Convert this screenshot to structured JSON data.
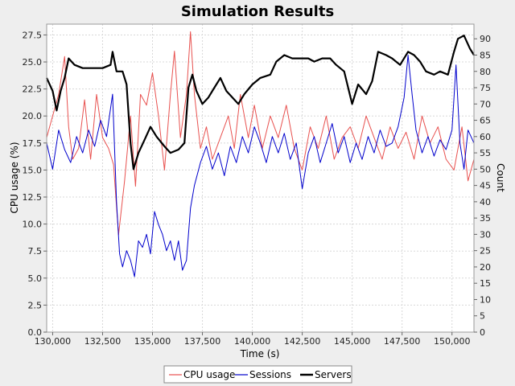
{
  "chart_data": {
    "type": "line",
    "title": "Simulation Results",
    "xlabel": "Time (s)",
    "ylabel_left": "CPU usage (%)",
    "ylabel_right": "Count",
    "xlim": [
      129700,
      151100
    ],
    "ylim_left": [
      0,
      28.5
    ],
    "ylim_right": [
      0,
      94.5
    ],
    "x_ticks": [
      130000,
      132500,
      135000,
      137500,
      140000,
      142500,
      145000,
      147500,
      150000
    ],
    "x_tick_labels": [
      "130,000",
      "132,500",
      "135,000",
      "137,500",
      "140,000",
      "142,500",
      "145,000",
      "147,500",
      "150,000"
    ],
    "y_left_ticks": [
      0,
      2.5,
      5,
      7.5,
      10,
      12.5,
      15,
      17.5,
      20,
      22.5,
      25,
      27.5
    ],
    "y_left_tick_labels": [
      "0.0",
      "2.5",
      "5.0",
      "7.5",
      "10.0",
      "12.5",
      "15.0",
      "17.5",
      "20.0",
      "22.5",
      "25.0",
      "27.5"
    ],
    "y_right_ticks": [
      0,
      5,
      10,
      15,
      20,
      25,
      30,
      35,
      40,
      45,
      50,
      55,
      60,
      65,
      70,
      75,
      80,
      85,
      90
    ],
    "y_right_tick_labels": [
      "0",
      "5",
      "10",
      "15",
      "20",
      "25",
      "30",
      "35",
      "40",
      "45",
      "50",
      "55",
      "60",
      "65",
      "70",
      "75",
      "80",
      "85",
      "90"
    ],
    "grid": true,
    "legend_position": "bottom",
    "series": [
      {
        "name": "CPU usage",
        "axis": "left",
        "color": "#e8514f",
        "points": [
          [
            129700,
            18
          ],
          [
            130000,
            20
          ],
          [
            130300,
            22
          ],
          [
            130600,
            25.5
          ],
          [
            130800,
            19
          ],
          [
            131000,
            16
          ],
          [
            131300,
            17
          ],
          [
            131600,
            21.5
          ],
          [
            131900,
            16
          ],
          [
            132200,
            22
          ],
          [
            132500,
            18
          ],
          [
            132800,
            17
          ],
          [
            133050,
            15.5
          ],
          [
            133300,
            9
          ],
          [
            133600,
            14
          ],
          [
            133900,
            20
          ],
          [
            134150,
            13.5
          ],
          [
            134400,
            22
          ],
          [
            134700,
            21
          ],
          [
            135000,
            24
          ],
          [
            135300,
            20
          ],
          [
            135600,
            15
          ],
          [
            135900,
            22
          ],
          [
            136100,
            26
          ],
          [
            136400,
            18
          ],
          [
            136700,
            22
          ],
          [
            136900,
            27.8
          ],
          [
            137100,
            22
          ],
          [
            137400,
            17
          ],
          [
            137700,
            19
          ],
          [
            138000,
            16
          ],
          [
            138400,
            18
          ],
          [
            138800,
            20
          ],
          [
            139100,
            17
          ],
          [
            139400,
            22
          ],
          [
            139800,
            18
          ],
          [
            140100,
            21
          ],
          [
            140500,
            17
          ],
          [
            140900,
            20
          ],
          [
            141300,
            18
          ],
          [
            141700,
            21
          ],
          [
            142100,
            17
          ],
          [
            142500,
            15
          ],
          [
            142900,
            19
          ],
          [
            143300,
            17
          ],
          [
            143700,
            20
          ],
          [
            144100,
            16
          ],
          [
            144500,
            18
          ],
          [
            144900,
            19
          ],
          [
            145300,
            17
          ],
          [
            145700,
            20
          ],
          [
            146100,
            18
          ],
          [
            146500,
            16
          ],
          [
            146900,
            19
          ],
          [
            147300,
            17
          ],
          [
            147700,
            18.5
          ],
          [
            148100,
            16
          ],
          [
            148500,
            20
          ],
          [
            148900,
            17.5
          ],
          [
            149300,
            19
          ],
          [
            149700,
            16
          ],
          [
            150100,
            15
          ],
          [
            150500,
            19
          ],
          [
            150800,
            14
          ],
          [
            151100,
            16
          ]
        ]
      },
      {
        "name": "Sessions",
        "axis": "right",
        "color": "#0000cc",
        "points": [
          [
            129700,
            58
          ],
          [
            130000,
            50
          ],
          [
            130300,
            62
          ],
          [
            130600,
            56
          ],
          [
            130900,
            52
          ],
          [
            131200,
            60
          ],
          [
            131500,
            55
          ],
          [
            131800,
            62
          ],
          [
            132100,
            57
          ],
          [
            132400,
            65
          ],
          [
            132700,
            60
          ],
          [
            133000,
            73
          ],
          [
            133200,
            40
          ],
          [
            133350,
            24
          ],
          [
            133500,
            20
          ],
          [
            133700,
            25
          ],
          [
            133900,
            22
          ],
          [
            134100,
            17
          ],
          [
            134300,
            28
          ],
          [
            134500,
            26
          ],
          [
            134700,
            30
          ],
          [
            134900,
            24
          ],
          [
            135100,
            37
          ],
          [
            135300,
            33
          ],
          [
            135500,
            30
          ],
          [
            135700,
            25
          ],
          [
            135900,
            28
          ],
          [
            136100,
            22
          ],
          [
            136300,
            28
          ],
          [
            136500,
            19
          ],
          [
            136700,
            22
          ],
          [
            136900,
            38
          ],
          [
            137100,
            45
          ],
          [
            137400,
            52
          ],
          [
            137700,
            57
          ],
          [
            138000,
            50
          ],
          [
            138300,
            55
          ],
          [
            138600,
            48
          ],
          [
            138900,
            57
          ],
          [
            139200,
            52
          ],
          [
            139500,
            60
          ],
          [
            139800,
            55
          ],
          [
            140100,
            63
          ],
          [
            140400,
            58
          ],
          [
            140700,
            52
          ],
          [
            141000,
            60
          ],
          [
            141300,
            55
          ],
          [
            141600,
            61
          ],
          [
            141900,
            53
          ],
          [
            142200,
            58
          ],
          [
            142500,
            44
          ],
          [
            142800,
            55
          ],
          [
            143100,
            60
          ],
          [
            143400,
            52
          ],
          [
            143700,
            58
          ],
          [
            144000,
            64
          ],
          [
            144300,
            55
          ],
          [
            144600,
            60
          ],
          [
            144900,
            52
          ],
          [
            145200,
            58
          ],
          [
            145500,
            53
          ],
          [
            145800,
            60
          ],
          [
            146100,
            55
          ],
          [
            146400,
            62
          ],
          [
            146700,
            57
          ],
          [
            147000,
            58
          ],
          [
            147300,
            63
          ],
          [
            147600,
            72
          ],
          [
            147800,
            85
          ],
          [
            148000,
            73
          ],
          [
            148200,
            62
          ],
          [
            148500,
            55
          ],
          [
            148800,
            60
          ],
          [
            149100,
            54
          ],
          [
            149400,
            59
          ],
          [
            149700,
            56
          ],
          [
            150000,
            62
          ],
          [
            150200,
            82
          ],
          [
            150400,
            58
          ],
          [
            150600,
            50
          ],
          [
            150800,
            62
          ],
          [
            151100,
            58
          ]
        ]
      },
      {
        "name": "Servers",
        "axis": "right",
        "color": "#000000",
        "points": [
          [
            129700,
            78
          ],
          [
            130000,
            74
          ],
          [
            130200,
            68
          ],
          [
            130400,
            74
          ],
          [
            130600,
            78
          ],
          [
            130800,
            84
          ],
          [
            131100,
            82
          ],
          [
            131500,
            81
          ],
          [
            132000,
            81
          ],
          [
            132500,
            81
          ],
          [
            132900,
            82
          ],
          [
            133000,
            86
          ],
          [
            133200,
            80
          ],
          [
            133500,
            80
          ],
          [
            133700,
            76
          ],
          [
            133900,
            58
          ],
          [
            134050,
            50
          ],
          [
            134300,
            55
          ],
          [
            134600,
            59
          ],
          [
            134900,
            63
          ],
          [
            135200,
            60
          ],
          [
            135600,
            57
          ],
          [
            135900,
            55
          ],
          [
            136300,
            56
          ],
          [
            136600,
            58
          ],
          [
            136800,
            75
          ],
          [
            137000,
            79
          ],
          [
            137200,
            74
          ],
          [
            137500,
            70
          ],
          [
            137800,
            72
          ],
          [
            138100,
            75
          ],
          [
            138400,
            78
          ],
          [
            138700,
            74
          ],
          [
            139000,
            72
          ],
          [
            139300,
            70
          ],
          [
            139600,
            73
          ],
          [
            140000,
            76
          ],
          [
            140400,
            78
          ],
          [
            140900,
            79
          ],
          [
            141200,
            83
          ],
          [
            141600,
            85
          ],
          [
            142000,
            84
          ],
          [
            142400,
            84
          ],
          [
            142800,
            84
          ],
          [
            143100,
            83
          ],
          [
            143500,
            84
          ],
          [
            143900,
            84
          ],
          [
            144200,
            82
          ],
          [
            144600,
            80
          ],
          [
            145000,
            70
          ],
          [
            145300,
            76
          ],
          [
            145700,
            73
          ],
          [
            146000,
            77
          ],
          [
            146300,
            86
          ],
          [
            146700,
            85
          ],
          [
            147000,
            84
          ],
          [
            147400,
            82
          ],
          [
            147800,
            86
          ],
          [
            148100,
            85
          ],
          [
            148400,
            83
          ],
          [
            148700,
            80
          ],
          [
            149100,
            79
          ],
          [
            149400,
            80
          ],
          [
            149800,
            79
          ],
          [
            150100,
            86
          ],
          [
            150300,
            90
          ],
          [
            150600,
            91
          ],
          [
            150900,
            87
          ],
          [
            151100,
            85
          ]
        ]
      }
    ]
  }
}
